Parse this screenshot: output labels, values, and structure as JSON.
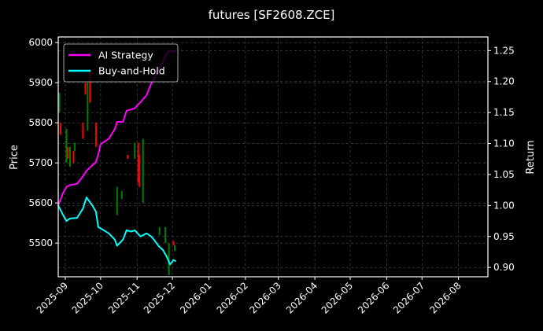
{
  "chart_data": {
    "type": "line",
    "title": "futures [SF2608.ZCE]",
    "xlabel": "",
    "ylabel": "Price",
    "y2label": "Return",
    "xlim": [
      "2025-08-26",
      "2026-08-26"
    ],
    "ylim": [
      5416,
      6014
    ],
    "y2lim": [
      0.885,
      1.272
    ],
    "grid": true,
    "legend_position": "top-left",
    "x_ticks": [
      "2025-09",
      "2025-10",
      "2025-11",
      "2025-12",
      "2026-01",
      "2026-02",
      "2026-03",
      "2026-04",
      "2026-05",
      "2026-06",
      "2026-07",
      "2026-08"
    ],
    "y_ticks": [
      5500,
      5600,
      5700,
      5800,
      5900,
      6000
    ],
    "y2_ticks": [
      "0.90",
      "0.95",
      "1.00",
      "1.05",
      "1.10",
      "1.15",
      "1.20",
      "1.25"
    ],
    "dates": [
      "2025-08-26",
      "2025-08-30",
      "2025-09-02",
      "2025-09-05",
      "2025-09-11",
      "2025-09-16",
      "2025-09-19",
      "2025-09-24",
      "2025-09-27",
      "2025-09-29",
      "2025-10-01",
      "2025-10-08",
      "2025-10-13",
      "2025-10-15",
      "2025-10-20",
      "2025-10-23",
      "2025-10-27",
      "2025-10-30",
      "2025-11-04",
      "2025-11-09",
      "2025-11-13",
      "2025-11-16",
      "2025-11-19",
      "2025-11-23",
      "2025-11-26",
      "2025-11-29",
      "2025-12-02",
      "2025-12-04"
    ],
    "series": [
      {
        "name": "AI Strategy",
        "color": "#ff00ff",
        "values": [
          1.0,
          1.02,
          1.03,
          1.033,
          1.035,
          1.047,
          1.056,
          1.065,
          1.07,
          1.083,
          1.099,
          1.108,
          1.123,
          1.135,
          1.135,
          1.153,
          1.155,
          1.157,
          1.167,
          1.178,
          1.197,
          1.207,
          1.22,
          1.232,
          1.245,
          1.25,
          1.248,
          1.25
        ]
      },
      {
        "name": "Buy-and-Hold",
        "color": "#00ffff",
        "values": [
          1.0,
          0.985,
          0.975,
          0.979,
          0.98,
          0.995,
          1.013,
          1.0,
          0.99,
          0.965,
          0.963,
          0.955,
          0.945,
          0.935,
          0.945,
          0.96,
          0.958,
          0.96,
          0.95,
          0.955,
          0.95,
          0.943,
          0.935,
          0.928,
          0.918,
          0.905,
          0.912,
          0.91
        ]
      }
    ],
    "candles": [
      {
        "date": "2025-08-27",
        "open": 5827,
        "close": 5875
      },
      {
        "date": "2025-08-28",
        "open": 5800,
        "close": 5770
      },
      {
        "date": "2025-09-02",
        "open": 5700,
        "close": 5785
      },
      {
        "date": "2025-09-03",
        "open": 5740,
        "close": 5710
      },
      {
        "date": "2025-09-05",
        "open": 5690,
        "close": 5740
      },
      {
        "date": "2025-09-08",
        "open": 5730,
        "close": 5700
      },
      {
        "date": "2025-09-09",
        "open": 5730,
        "close": 5750
      },
      {
        "date": "2025-09-16",
        "open": 5800,
        "close": 5760
      },
      {
        "date": "2025-09-18",
        "open": 5900,
        "close": 5870
      },
      {
        "date": "2025-09-20",
        "open": 5780,
        "close": 5900
      },
      {
        "date": "2025-09-22",
        "open": 5930,
        "close": 5850
      },
      {
        "date": "2025-09-27",
        "open": 5800,
        "close": 5740
      },
      {
        "date": "2025-10-15",
        "open": 5570,
        "close": 5640
      },
      {
        "date": "2025-10-19",
        "open": 5610,
        "close": 5630
      },
      {
        "date": "2025-10-24",
        "open": 5720,
        "close": 5710
      },
      {
        "date": "2025-10-30",
        "open": 5710,
        "close": 5750
      },
      {
        "date": "2025-11-02",
        "open": 5750,
        "close": 5650
      },
      {
        "date": "2025-11-03",
        "open": 5720,
        "close": 5640
      },
      {
        "date": "2025-11-06",
        "open": 5600,
        "close": 5760
      },
      {
        "date": "2025-11-20",
        "open": 5520,
        "close": 5540
      },
      {
        "date": "2025-11-25",
        "open": 5500,
        "close": 5540
      },
      {
        "date": "2025-11-28",
        "open": 5420,
        "close": 5500
      },
      {
        "date": "2025-12-02",
        "open": 5505,
        "close": 5495
      },
      {
        "date": "2025-12-03",
        "open": 5480,
        "close": 5495
      }
    ]
  }
}
